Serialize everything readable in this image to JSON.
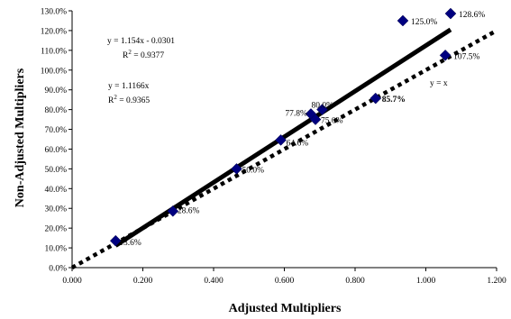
{
  "chart_data": {
    "type": "scatter",
    "title": "",
    "xlabel": "Adjusted Multipliers",
    "ylabel": "Non-Adjusted Multipliers",
    "xlim": [
      0,
      1.2
    ],
    "ylim": [
      0,
      1.3
    ],
    "x_ticks": [
      "0.000",
      "0.200",
      "0.400",
      "0.600",
      "0.800",
      "1.000",
      "1.200"
    ],
    "y_ticks": [
      "0.0%",
      "10.0%",
      "20.0%",
      "30.0%",
      "40.0%",
      "50.0%",
      "60.0%",
      "70.0%",
      "80.0%",
      "90.0%",
      "100.0%",
      "110.0%",
      "120.0%",
      "130.0%"
    ],
    "grid": false,
    "legend": "none",
    "marker_color": "#000080",
    "points": [
      {
        "x": 0.123,
        "y": 0.136,
        "label": "13.6%",
        "bold": false
      },
      {
        "x": 0.285,
        "y": 0.286,
        "label": "28.6%",
        "bold": false
      },
      {
        "x": 0.465,
        "y": 0.5,
        "label": "50.0%",
        "bold": false
      },
      {
        "x": 0.59,
        "y": 0.646,
        "label": "64.6%",
        "bold": false
      },
      {
        "x": 0.675,
        "y": 0.778,
        "label": "77.8%",
        "bold": false
      },
      {
        "x": 0.688,
        "y": 0.75,
        "label": "75.0%",
        "bold": false
      },
      {
        "x": 0.707,
        "y": 0.8,
        "label": "80.0%",
        "bold": false
      },
      {
        "x": 0.858,
        "y": 0.857,
        "label": "85.7%",
        "bold": true
      },
      {
        "x": 0.935,
        "y": 1.25,
        "label": "125.0%",
        "bold": false
      },
      {
        "x": 1.055,
        "y": 1.075,
        "label": "107.5%",
        "bold": false
      },
      {
        "x": 1.07,
        "y": 1.286,
        "label": "128.6%",
        "bold": false
      }
    ],
    "lines": [
      {
        "name": "y = 1.154x - 0.0301",
        "slope": 1.154,
        "intercept": -0.0301,
        "x_range": [
          0.123,
          1.07
        ],
        "style": "solid"
      },
      {
        "name": "y = x",
        "slope": 1.0,
        "intercept": 0.0,
        "x_range": [
          0.0,
          1.2
        ],
        "style": "dotted"
      }
    ],
    "annotations": [
      {
        "id": "eq1",
        "text": "y = 1.154x - 0.0301"
      },
      {
        "id": "r1",
        "base": "R",
        "sup": "2",
        "value": " = 0.9377"
      },
      {
        "id": "eq2",
        "text": "y = 1.1166x"
      },
      {
        "id": "r2",
        "base": "R",
        "sup": "2",
        "value": " = 0.9365"
      },
      {
        "id": "yx",
        "text": "y = x"
      }
    ]
  }
}
